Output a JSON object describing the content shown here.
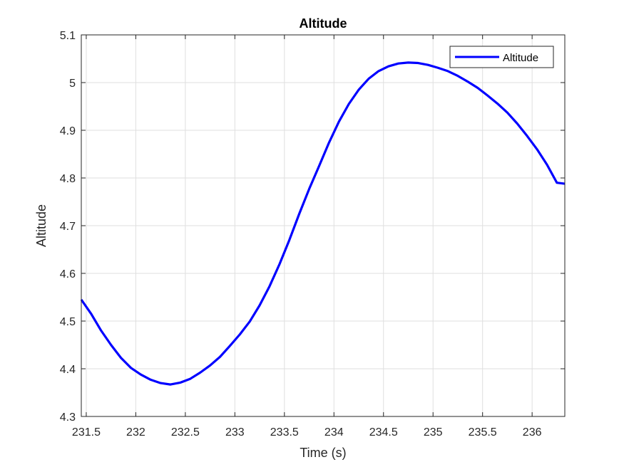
{
  "chart_data": {
    "type": "line",
    "title": "Altitude",
    "xlabel": "Time (s)",
    "ylabel": "Altitude",
    "xlim": [
      231.45,
      236.33
    ],
    "ylim": [
      4.3,
      5.1
    ],
    "xticks": [
      231.5,
      232,
      232.5,
      233,
      233.5,
      234,
      234.5,
      235,
      235.5,
      236
    ],
    "xtick_labels": [
      "231.5",
      "232",
      "232.5",
      "233",
      "233.5",
      "234",
      "234.5",
      "235",
      "235.5",
      "236"
    ],
    "yticks": [
      4.3,
      4.4,
      4.5,
      4.6,
      4.7,
      4.8,
      4.9,
      5.0,
      5.1
    ],
    "ytick_labels": [
      "4.3",
      "4.4",
      "4.5",
      "4.6",
      "4.7",
      "4.8",
      "4.9",
      "5",
      "5.1"
    ],
    "grid": true,
    "legend_position": "top-right",
    "series": [
      {
        "name": "Altitude",
        "color": "#0000ff",
        "x": [
          231.45,
          231.55,
          231.65,
          231.75,
          231.85,
          231.95,
          232.05,
          232.15,
          232.25,
          232.35,
          232.45,
          232.55,
          232.65,
          232.75,
          232.85,
          232.95,
          233.05,
          233.15,
          233.25,
          233.35,
          233.45,
          233.55,
          233.65,
          233.75,
          233.85,
          233.95,
          234.05,
          234.15,
          234.25,
          234.35,
          234.45,
          234.55,
          234.65,
          234.75,
          234.85,
          234.95,
          235.05,
          235.15,
          235.25,
          235.35,
          235.45,
          235.55,
          235.65,
          235.75,
          235.85,
          235.95,
          236.05,
          236.15,
          236.25,
          236.33
        ],
        "y": [
          4.545,
          4.515,
          4.48,
          4.45,
          4.423,
          4.402,
          4.388,
          4.377,
          4.37,
          4.367,
          4.371,
          4.379,
          4.392,
          4.407,
          4.425,
          4.448,
          4.472,
          4.499,
          4.533,
          4.573,
          4.619,
          4.67,
          4.725,
          4.777,
          4.825,
          4.874,
          4.918,
          4.955,
          4.985,
          5.008,
          5.024,
          5.034,
          5.04,
          5.042,
          5.041,
          5.037,
          5.031,
          5.024,
          5.014,
          5.002,
          4.989,
          4.973,
          4.956,
          4.937,
          4.914,
          4.888,
          4.86,
          4.828,
          4.79,
          4.788
        ]
      }
    ]
  }
}
